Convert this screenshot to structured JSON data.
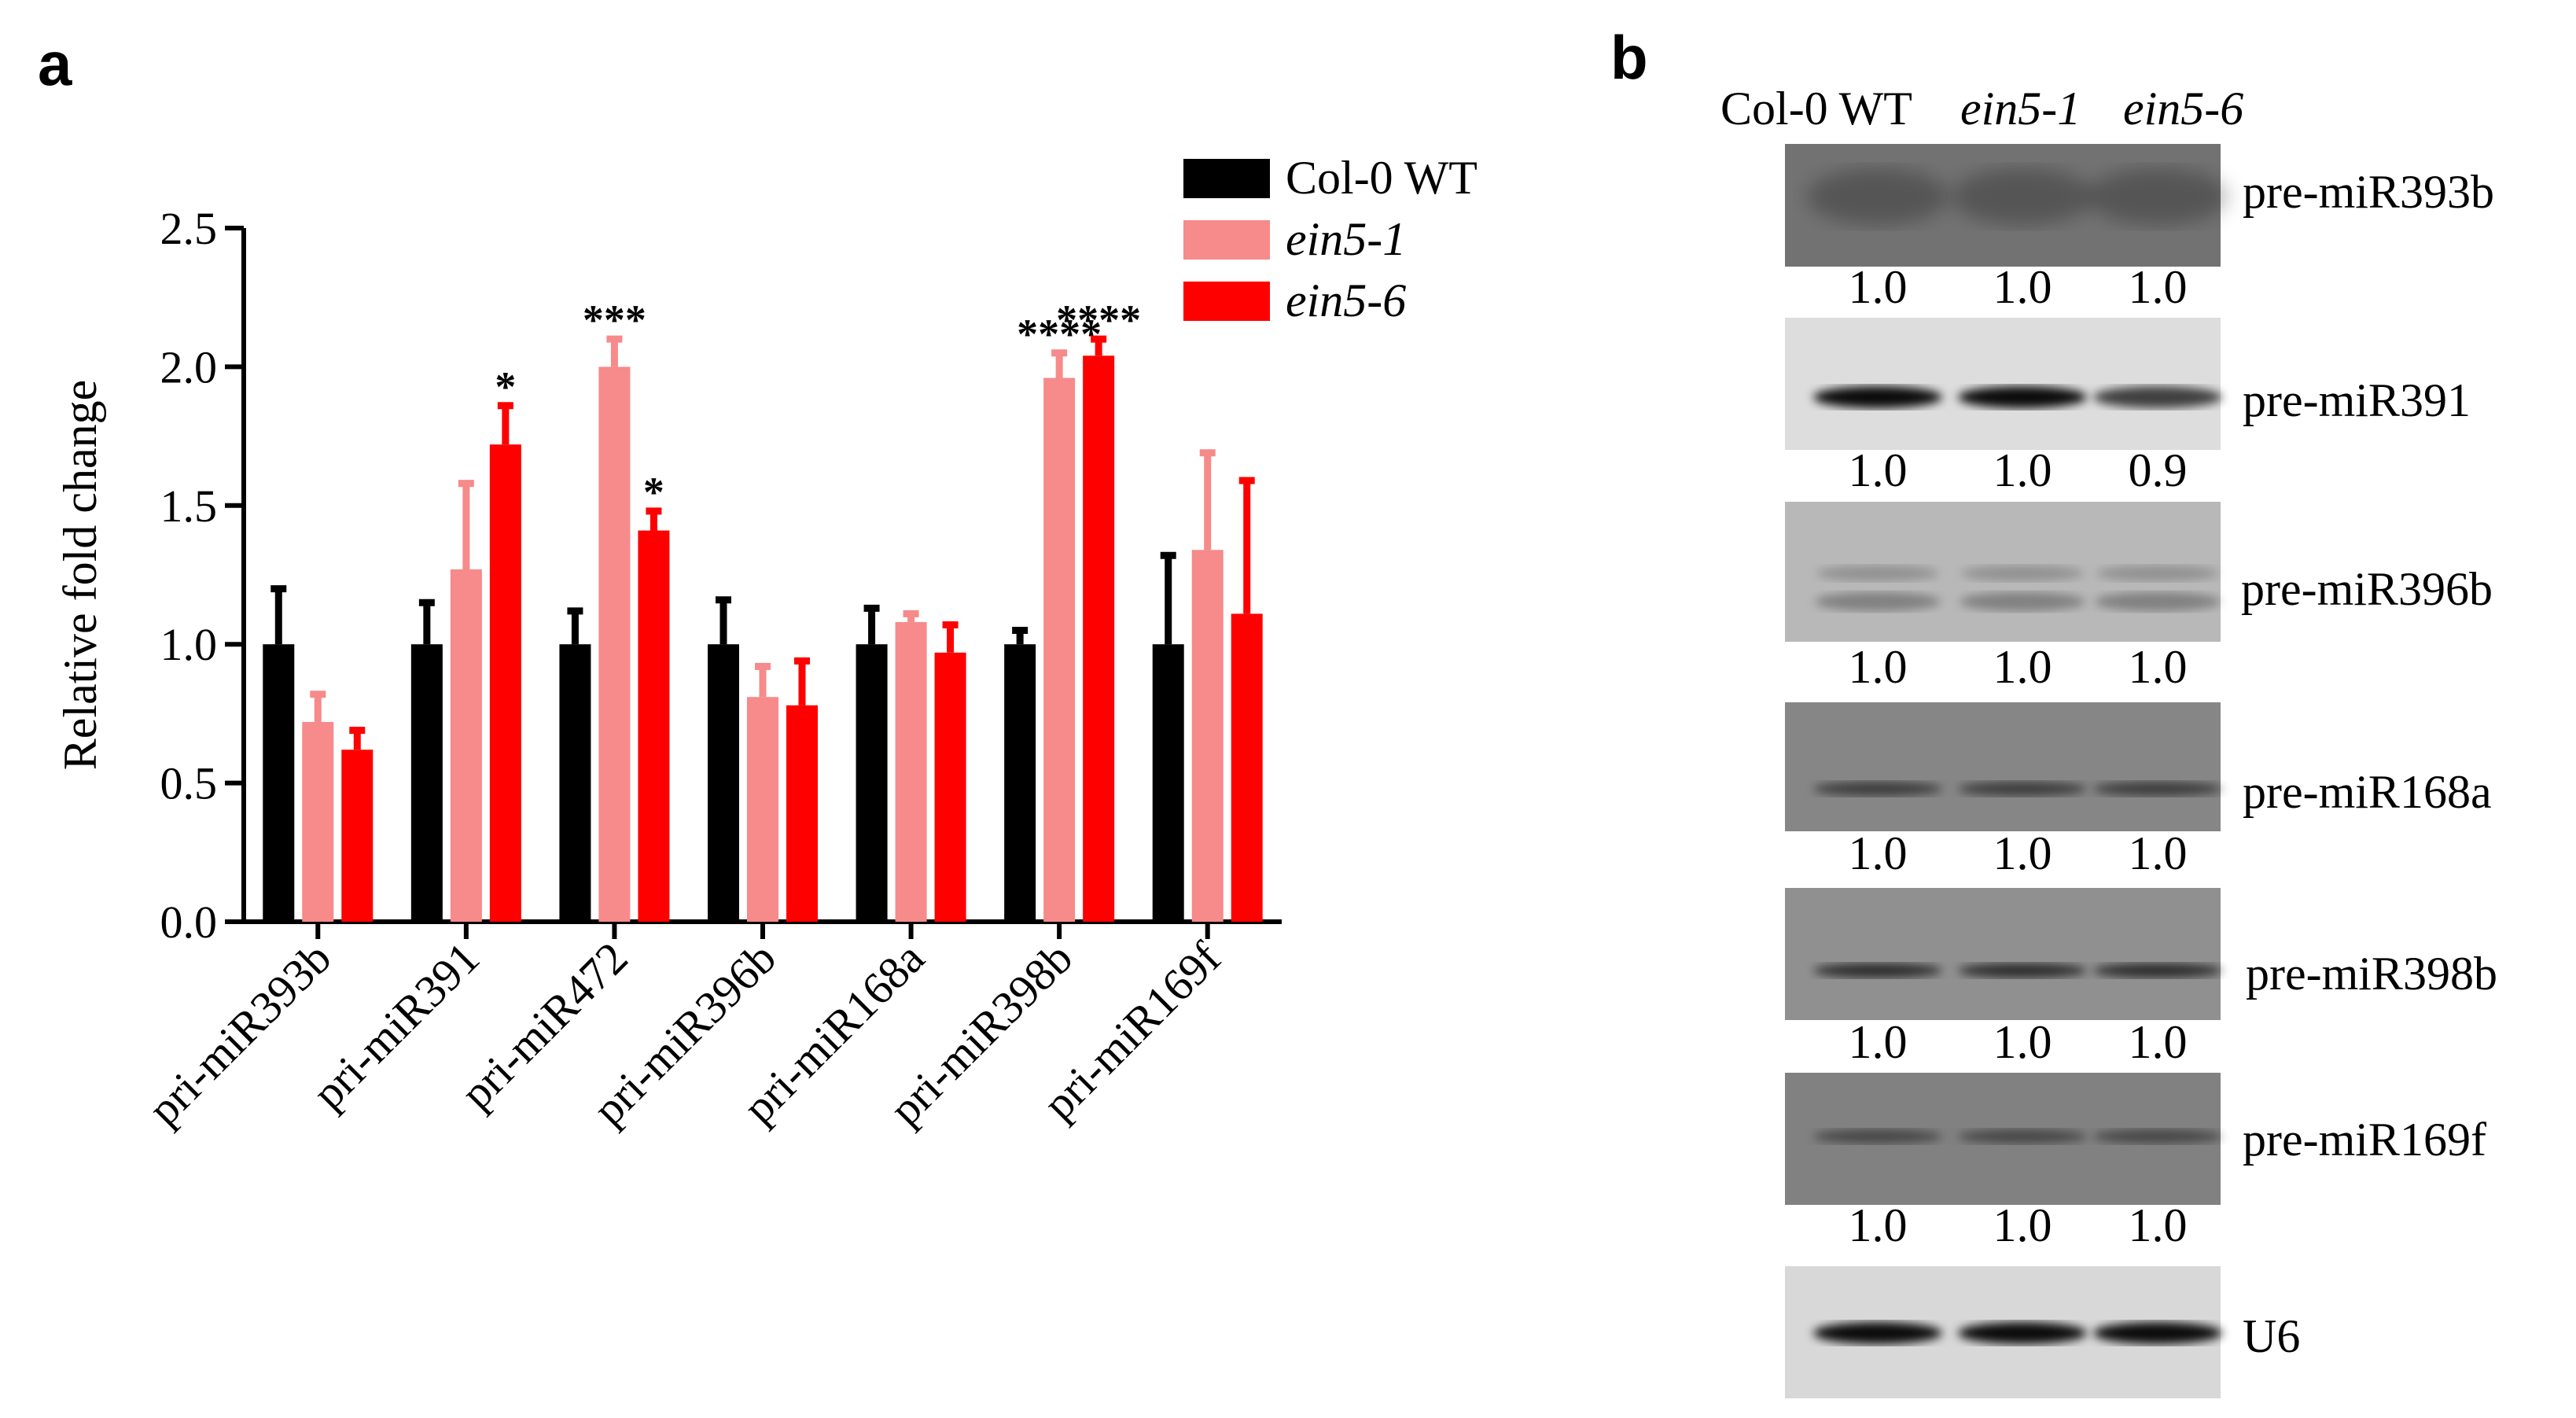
{
  "panels": {
    "a_label": "a",
    "b_label": "b"
  },
  "chart_data": {
    "type": "bar",
    "title": "",
    "xlabel": "",
    "ylabel": "Relative fold change",
    "ylim": [
      0,
      2.5
    ],
    "yticks": [
      "0.0",
      "0.5",
      "1.0",
      "1.5",
      "2.0",
      "2.5"
    ],
    "legend_position": "top-right",
    "categories": [
      "pri-miR393b",
      "pri-miR391",
      "pri-miR472",
      "pri-miR396b",
      "pri-miR168a",
      "pri-miR398b",
      "pri-miR169f"
    ],
    "series": [
      {
        "name": "Col-0 WT",
        "italic": false,
        "color": "#000000",
        "values": [
          1.0,
          1.0,
          1.0,
          1.0,
          1.0,
          1.0,
          1.0
        ],
        "errors": [
          0.2,
          0.15,
          0.12,
          0.16,
          0.13,
          0.05,
          0.32
        ],
        "marks": [
          "",
          "",
          "",
          "",
          "",
          "",
          ""
        ]
      },
      {
        "name": "ein5-1",
        "italic": true,
        "color": "#f78a8a",
        "values": [
          0.72,
          1.27,
          2.0,
          0.81,
          1.08,
          1.96,
          1.34
        ],
        "errors": [
          0.1,
          0.31,
          0.1,
          0.11,
          0.03,
          0.09,
          0.35
        ],
        "marks": [
          "",
          "",
          "***",
          "",
          "",
          "****",
          ""
        ]
      },
      {
        "name": "ein5-6",
        "italic": true,
        "color": "#ff0000",
        "values": [
          0.62,
          1.72,
          1.41,
          0.78,
          0.97,
          2.04,
          1.11
        ],
        "errors": [
          0.07,
          0.14,
          0.07,
          0.16,
          0.1,
          0.06,
          0.48
        ],
        "marks": [
          "",
          "*",
          "*",
          "",
          "",
          "****",
          ""
        ]
      }
    ]
  },
  "blot": {
    "column_labels": [
      {
        "text": "Col-0 WT",
        "italic": false
      },
      {
        "text": "ein5-1",
        "italic": true
      },
      {
        "text": "ein5-6",
        "italic": true
      }
    ],
    "rows": [
      {
        "label": "pre-miR393b",
        "values": [
          "1.0",
          "1.0",
          "1.0"
        ]
      },
      {
        "label": "pre-miR391",
        "values": [
          "1.0",
          "1.0",
          "0.9"
        ]
      },
      {
        "label": "pre-miR396b",
        "values": [
          "1.0",
          "1.0",
          "1.0"
        ]
      },
      {
        "label": "pre-miR168a",
        "values": [
          "1.0",
          "1.0",
          "1.0"
        ]
      },
      {
        "label": "pre-miR398b",
        "values": [
          "1.0",
          "1.0",
          "1.0"
        ]
      },
      {
        "label": "pre-miR169f",
        "values": [
          "1.0",
          "1.0",
          "1.0"
        ]
      },
      {
        "label": "U6",
        "values": []
      }
    ]
  }
}
